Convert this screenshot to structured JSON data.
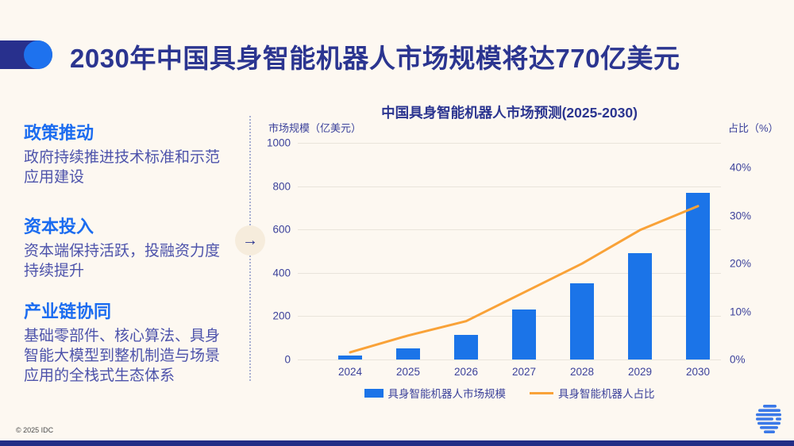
{
  "header": {
    "title": "2030年中国具身智能机器人市场规模将达770亿美元"
  },
  "sidebar": {
    "sections": [
      {
        "heading": "政策推动",
        "body": "政府持续推进技术标准和示范\n应用建设"
      },
      {
        "heading": "资本投入",
        "body": "资本端保持活跃，投融资力度\n持续提升"
      },
      {
        "heading": "产业链协同",
        "body": "基础零部件、核心算法、具身\n智能大模型到整机制造与场景\n应用的全栈式生态体系"
      }
    ],
    "arrow_icon": "→"
  },
  "chart_data": {
    "type": "bar",
    "combo": "bar+line",
    "title": "中国具身智能机器人市场预测(2025-2030)",
    "categories": [
      "2024",
      "2025",
      "2026",
      "2027",
      "2028",
      "2029",
      "2030"
    ],
    "series": [
      {
        "name": "具身智能机器人市场规模",
        "kind": "bar",
        "axis": "left",
        "color": "#1b74e8",
        "values": [
          20,
          50,
          115,
          230,
          350,
          490,
          770
        ]
      },
      {
        "name": "具身智能机器人占比",
        "kind": "line",
        "axis": "right",
        "color": "#f9a238",
        "values": [
          1.5,
          5,
          8,
          14,
          20,
          27,
          32
        ]
      }
    ],
    "y_left": {
      "label": "市场规模（亿美元）",
      "ticks": [
        0,
        200,
        400,
        600,
        800,
        1000
      ],
      "axis_max": 1000
    },
    "y_right": {
      "label": "占比（%）",
      "ticks": [
        0,
        10,
        20,
        30,
        40
      ],
      "tick_suffix": "%",
      "axis_max": 45.2
    },
    "grid": true,
    "legend_position": "bottom"
  },
  "footer": {
    "copyright": "© 2025 IDC",
    "logo": "idc-globe-logo"
  },
  "colors": {
    "background": "#fdf8f1",
    "navy": "#28308d",
    "title_text": "#2b3590",
    "accent_blue": "#1b74e8",
    "body_text": "#4d53ab",
    "orange": "#f9a238",
    "gridline": "#e9e4db"
  }
}
